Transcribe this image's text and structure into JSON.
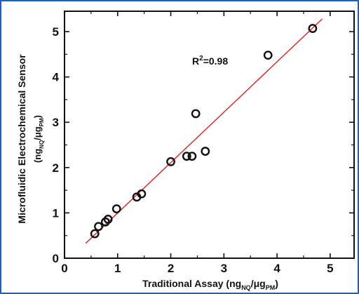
{
  "chart_data": {
    "type": "scatter",
    "x_label": {
      "prefix": "Traditional Assay (ng",
      "sub1": "NQ",
      "mid": "/μg",
      "sub2": "PM",
      "suffix": ")"
    },
    "y_label": {
      "line1": "Microfluidic Electrochemical Sensor",
      "prefix": "(ng",
      "sub1": "NQ",
      "mid": "/μg",
      "sub2": "PM",
      "suffix": ")"
    },
    "annotation": {
      "prefix": "R",
      "sup": "2",
      "suffix": "=0.98"
    },
    "xlim": [
      0,
      5.45
    ],
    "ylim": [
      0,
      5.45
    ],
    "x_ticks": [
      0,
      1,
      2,
      3,
      4,
      5
    ],
    "y_ticks": [
      0,
      1,
      2,
      3,
      4,
      5
    ],
    "grid": false,
    "legend": "none",
    "marker_color": "#111111",
    "fit_line_color": "#e0201b",
    "fit_line": {
      "x": [
        0.4,
        4.85
      ],
      "y": [
        0.33,
        5.28
      ]
    },
    "points": [
      {
        "x": 0.57,
        "y": 0.54
      },
      {
        "x": 0.64,
        "y": 0.7
      },
      {
        "x": 0.77,
        "y": 0.8
      },
      {
        "x": 0.82,
        "y": 0.86
      },
      {
        "x": 0.98,
        "y": 1.09
      },
      {
        "x": 1.36,
        "y": 1.35
      },
      {
        "x": 1.45,
        "y": 1.42
      },
      {
        "x": 2.0,
        "y": 2.13
      },
      {
        "x": 2.3,
        "y": 2.25
      },
      {
        "x": 2.4,
        "y": 2.25
      },
      {
        "x": 2.47,
        "y": 3.19
      },
      {
        "x": 2.65,
        "y": 2.36
      },
      {
        "x": 3.83,
        "y": 4.48
      },
      {
        "x": 4.67,
        "y": 5.07
      }
    ]
  }
}
